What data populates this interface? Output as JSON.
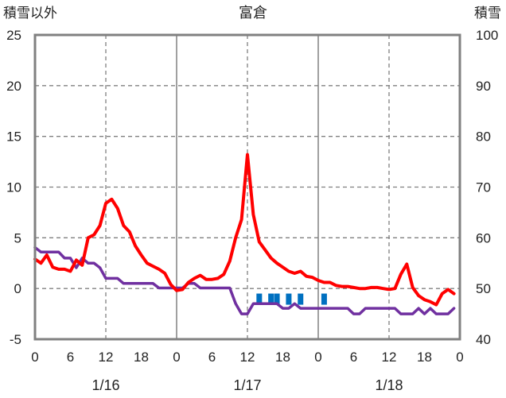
{
  "chart_data": {
    "type": "line",
    "title": "富倉",
    "y_left_label": "積雪以外",
    "y_right_label": "積雪",
    "y_left_range": [
      -5,
      25
    ],
    "y_left_ticks": [
      "-5",
      "0",
      "5",
      "10",
      "15",
      "20",
      "25"
    ],
    "y_right_range": [
      40,
      100
    ],
    "y_right_ticks": [
      "40",
      "50",
      "60",
      "70",
      "80",
      "90",
      "100"
    ],
    "x_range_hours": [
      0,
      72
    ],
    "x_tick_labels": [
      "0",
      "6",
      "12",
      "18",
      "0",
      "6",
      "12",
      "18",
      "0",
      "6",
      "12",
      "18",
      "0"
    ],
    "date_labels": [
      "1/16",
      "1/17",
      "1/18"
    ],
    "grid": true,
    "colors": {
      "temperature": "#ff0000",
      "snow_depth": "#7030a0",
      "precipitation": "#0070c0",
      "axis": "#808080",
      "grid": "#808080"
    },
    "series": [
      {
        "key": "temperature",
        "axis": "left",
        "points": [
          [
            0,
            2.9
          ],
          [
            1,
            2.5
          ],
          [
            2,
            3.3
          ],
          [
            3,
            2.1
          ],
          [
            4,
            1.9
          ],
          [
            5,
            1.9
          ],
          [
            6,
            1.7
          ],
          [
            7,
            2.8
          ],
          [
            8,
            2.3
          ],
          [
            9,
            5.0
          ],
          [
            10,
            5.3
          ],
          [
            11,
            6.2
          ],
          [
            12,
            8.4
          ],
          [
            13,
            8.8
          ],
          [
            14,
            7.9
          ],
          [
            15,
            6.2
          ],
          [
            16,
            5.6
          ],
          [
            17,
            4.2
          ],
          [
            18,
            3.3
          ],
          [
            19,
            2.5
          ],
          [
            20,
            2.2
          ],
          [
            21,
            1.9
          ],
          [
            22,
            1.5
          ],
          [
            23,
            0.4
          ],
          [
            24,
            -0.2
          ],
          [
            25,
            -0.1
          ],
          [
            26,
            0.6
          ],
          [
            27,
            1.0
          ],
          [
            28,
            1.3
          ],
          [
            29,
            0.9
          ],
          [
            30,
            0.9
          ],
          [
            31,
            1.0
          ],
          [
            32,
            1.4
          ],
          [
            33,
            2.7
          ],
          [
            34,
            5.0
          ],
          [
            35,
            6.8
          ],
          [
            36,
            13.2
          ],
          [
            37,
            7.3
          ],
          [
            38,
            4.6
          ],
          [
            39,
            3.8
          ],
          [
            40,
            3.0
          ],
          [
            41,
            2.5
          ],
          [
            42,
            2.1
          ],
          [
            43,
            1.7
          ],
          [
            44,
            1.5
          ],
          [
            45,
            1.7
          ],
          [
            46,
            1.2
          ],
          [
            47,
            1.1
          ],
          [
            48,
            0.8
          ],
          [
            49,
            0.6
          ],
          [
            50,
            0.6
          ],
          [
            51,
            0.3
          ],
          [
            52,
            0.2
          ],
          [
            53,
            0.2
          ],
          [
            54,
            0.1
          ],
          [
            55,
            0.0
          ],
          [
            56,
            0.0
          ],
          [
            57,
            0.1
          ],
          [
            58,
            0.1
          ],
          [
            59,
            0.0
          ],
          [
            60,
            -0.1
          ],
          [
            61,
            0.0
          ],
          [
            62,
            1.4
          ],
          [
            63,
            2.4
          ],
          [
            64,
            0.1
          ],
          [
            65,
            -0.7
          ],
          [
            66,
            -1.1
          ],
          [
            67,
            -1.3
          ],
          [
            68,
            -1.6
          ],
          [
            69,
            -0.5
          ],
          [
            70,
            -0.1
          ],
          [
            71,
            -0.5
          ]
        ]
      },
      {
        "key": "snow_depth",
        "axis": "right",
        "points": [
          [
            0,
            58.1
          ],
          [
            1,
            57.2
          ],
          [
            2,
            57.2
          ],
          [
            3,
            57.2
          ],
          [
            4,
            57.2
          ],
          [
            5,
            56.0
          ],
          [
            6,
            56.0
          ],
          [
            7,
            54.1
          ],
          [
            8,
            56.0
          ],
          [
            9,
            55.0
          ],
          [
            10,
            55.0
          ],
          [
            11,
            54.1
          ],
          [
            12,
            52.0
          ],
          [
            13,
            52.0
          ],
          [
            14,
            52.0
          ],
          [
            15,
            51.0
          ],
          [
            16,
            51.0
          ],
          [
            17,
            51.0
          ],
          [
            18,
            51.0
          ],
          [
            19,
            51.0
          ],
          [
            20,
            51.0
          ],
          [
            21,
            50.1
          ],
          [
            22,
            50.1
          ],
          [
            23,
            50.1
          ],
          [
            24,
            50.1
          ],
          [
            25,
            50.1
          ],
          [
            26,
            51.0
          ],
          [
            27,
            51.0
          ],
          [
            28,
            50.1
          ],
          [
            29,
            50.1
          ],
          [
            30,
            50.1
          ],
          [
            31,
            50.1
          ],
          [
            32,
            50.1
          ],
          [
            33,
            50.1
          ],
          [
            34,
            47.0
          ],
          [
            35,
            45.0
          ],
          [
            36,
            45.0
          ],
          [
            37,
            47.0
          ],
          [
            38,
            47.0
          ],
          [
            39,
            47.0
          ],
          [
            40,
            47.0
          ],
          [
            41,
            47.0
          ],
          [
            42,
            46.1
          ],
          [
            43,
            46.1
          ],
          [
            44,
            47.0
          ],
          [
            45,
            46.1
          ],
          [
            46,
            46.1
          ],
          [
            47,
            46.1
          ],
          [
            48,
            46.1
          ],
          [
            49,
            46.1
          ],
          [
            50,
            46.1
          ],
          [
            51,
            46.1
          ],
          [
            52,
            46.1
          ],
          [
            53,
            46.1
          ],
          [
            54,
            45.0
          ],
          [
            55,
            45.0
          ],
          [
            56,
            46.1
          ],
          [
            57,
            46.1
          ],
          [
            58,
            46.1
          ],
          [
            59,
            46.1
          ],
          [
            60,
            46.1
          ],
          [
            61,
            46.1
          ],
          [
            62,
            45.0
          ],
          [
            63,
            45.0
          ],
          [
            64,
            45.0
          ],
          [
            65,
            46.1
          ],
          [
            66,
            45.0
          ],
          [
            67,
            46.1
          ],
          [
            68,
            45.0
          ],
          [
            69,
            45.0
          ],
          [
            70,
            45.0
          ],
          [
            71,
            46.1
          ]
        ]
      },
      {
        "key": "precipitation",
        "axis": "left",
        "type": "bar",
        "baseline": -0.5,
        "points": [
          [
            38,
            -0.5
          ],
          [
            40,
            -0.5
          ],
          [
            41,
            -0.5
          ],
          [
            43,
            -0.5
          ],
          [
            45,
            -0.5
          ],
          [
            49,
            -0.5
          ]
        ]
      }
    ]
  }
}
